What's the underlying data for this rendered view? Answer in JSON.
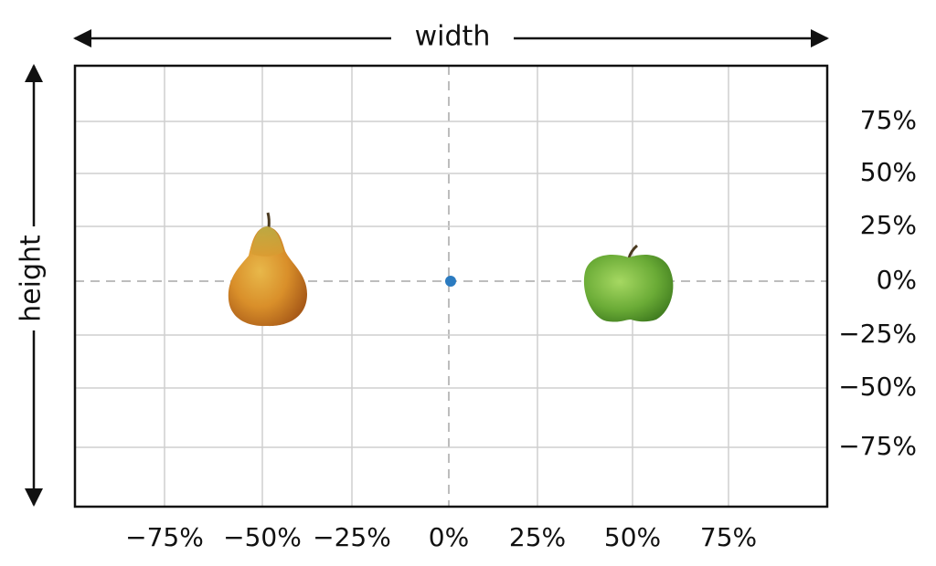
{
  "labels": {
    "width": "width",
    "height": "height"
  },
  "x_ticks": [
    "−75%",
    "−50%",
    "−25%",
    "0%",
    "25%",
    "50%",
    "75%"
  ],
  "y_ticks": [
    "75%",
    "50%",
    "25%",
    "0%",
    "−25%",
    "−50%",
    "−75%"
  ]
}
